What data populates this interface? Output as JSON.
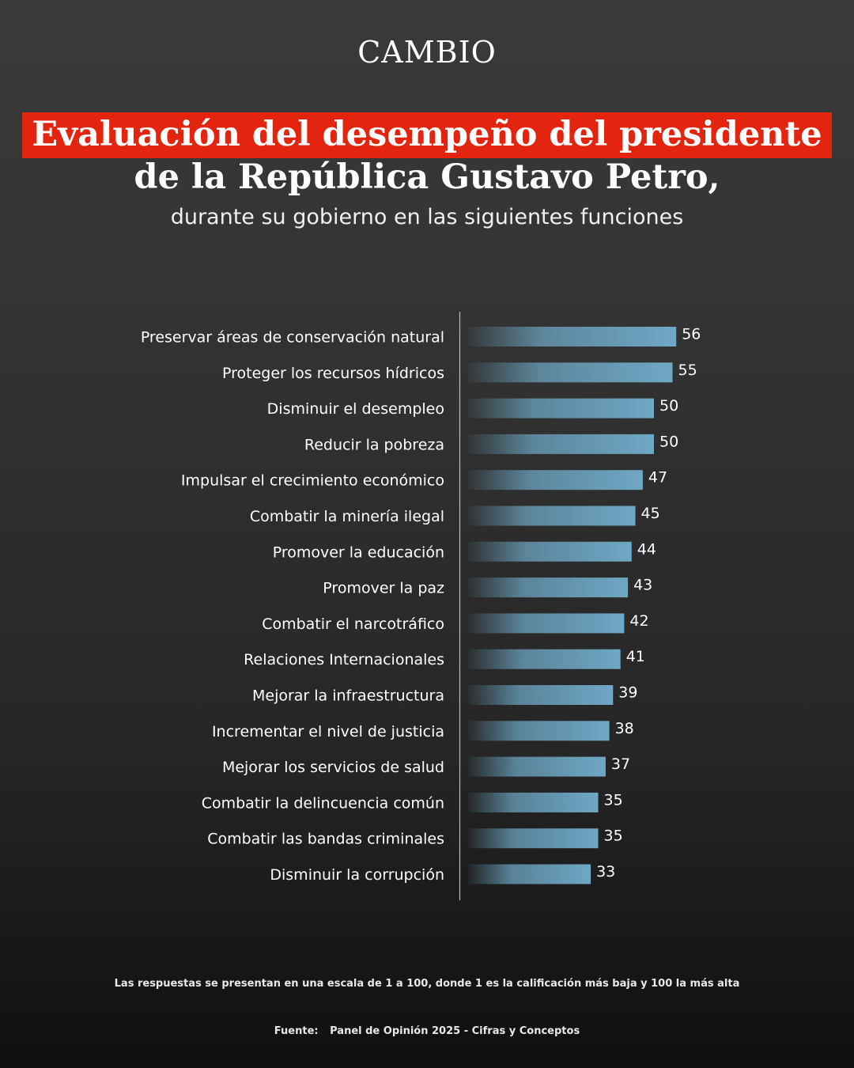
{
  "brand": "CAMBIO",
  "colors": {
    "accent": "#e3240f",
    "bar": "#6ba3c0",
    "background": "#2e2e2e"
  },
  "chart_data": {
    "type": "bar",
    "orientation": "horizontal",
    "title_line1": "Evaluación del desempeño del presidente",
    "title_line2": "de la República Gustavo Petro,",
    "subtitle": "durante su gobierno en las siguientes funciones",
    "categories": [
      "Preservar áreas de conservación natural",
      "Proteger los recursos hídricos",
      "Disminuir el desempleo",
      "Reducir la pobreza",
      "Impulsar el crecimiento económico",
      "Combatir la minería ilegal",
      "Promover la educación",
      "Promover la paz",
      "Combatir el narcotráfico",
      "Relaciones Internacionales",
      "Mejorar la infraestructura",
      "Incrementar el nivel de justicia",
      "Mejorar los servicios de salud",
      "Combatir la delincuencia común",
      "Combatir las bandas criminales",
      "Disminuir la corrupción"
    ],
    "values": [
      56,
      55,
      50,
      50,
      47,
      45,
      44,
      43,
      42,
      41,
      39,
      38,
      37,
      35,
      35,
      33
    ],
    "xlim": [
      0,
      100
    ],
    "grid": false,
    "legend": "none"
  },
  "footer": {
    "note": "Las respuestas se presentan en una escala de 1 a 100, donde 1 es la calificación más baja y 100 la más alta",
    "source_label": "Fuente:",
    "source_text": "Panel de Opinión 2025 - Cifras y Conceptos"
  }
}
